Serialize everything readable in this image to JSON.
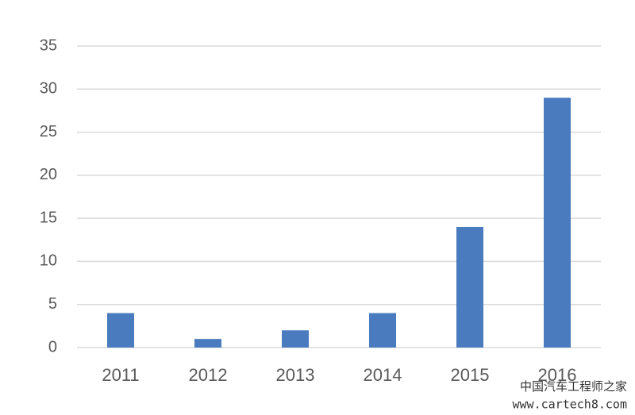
{
  "chart_data": {
    "type": "bar",
    "categories": [
      "2011",
      "2012",
      "2013",
      "2014",
      "2015",
      "2016"
    ],
    "values": [
      4,
      1,
      2,
      4,
      14,
      29
    ],
    "color": "#4a7bbf",
    "ylim": [
      0,
      35
    ],
    "yticks": [
      0,
      5,
      10,
      15,
      20,
      25,
      30,
      35
    ],
    "grid": true,
    "watermark": [
      "中国汽车工程师之家",
      "www.cartech8.com"
    ]
  }
}
